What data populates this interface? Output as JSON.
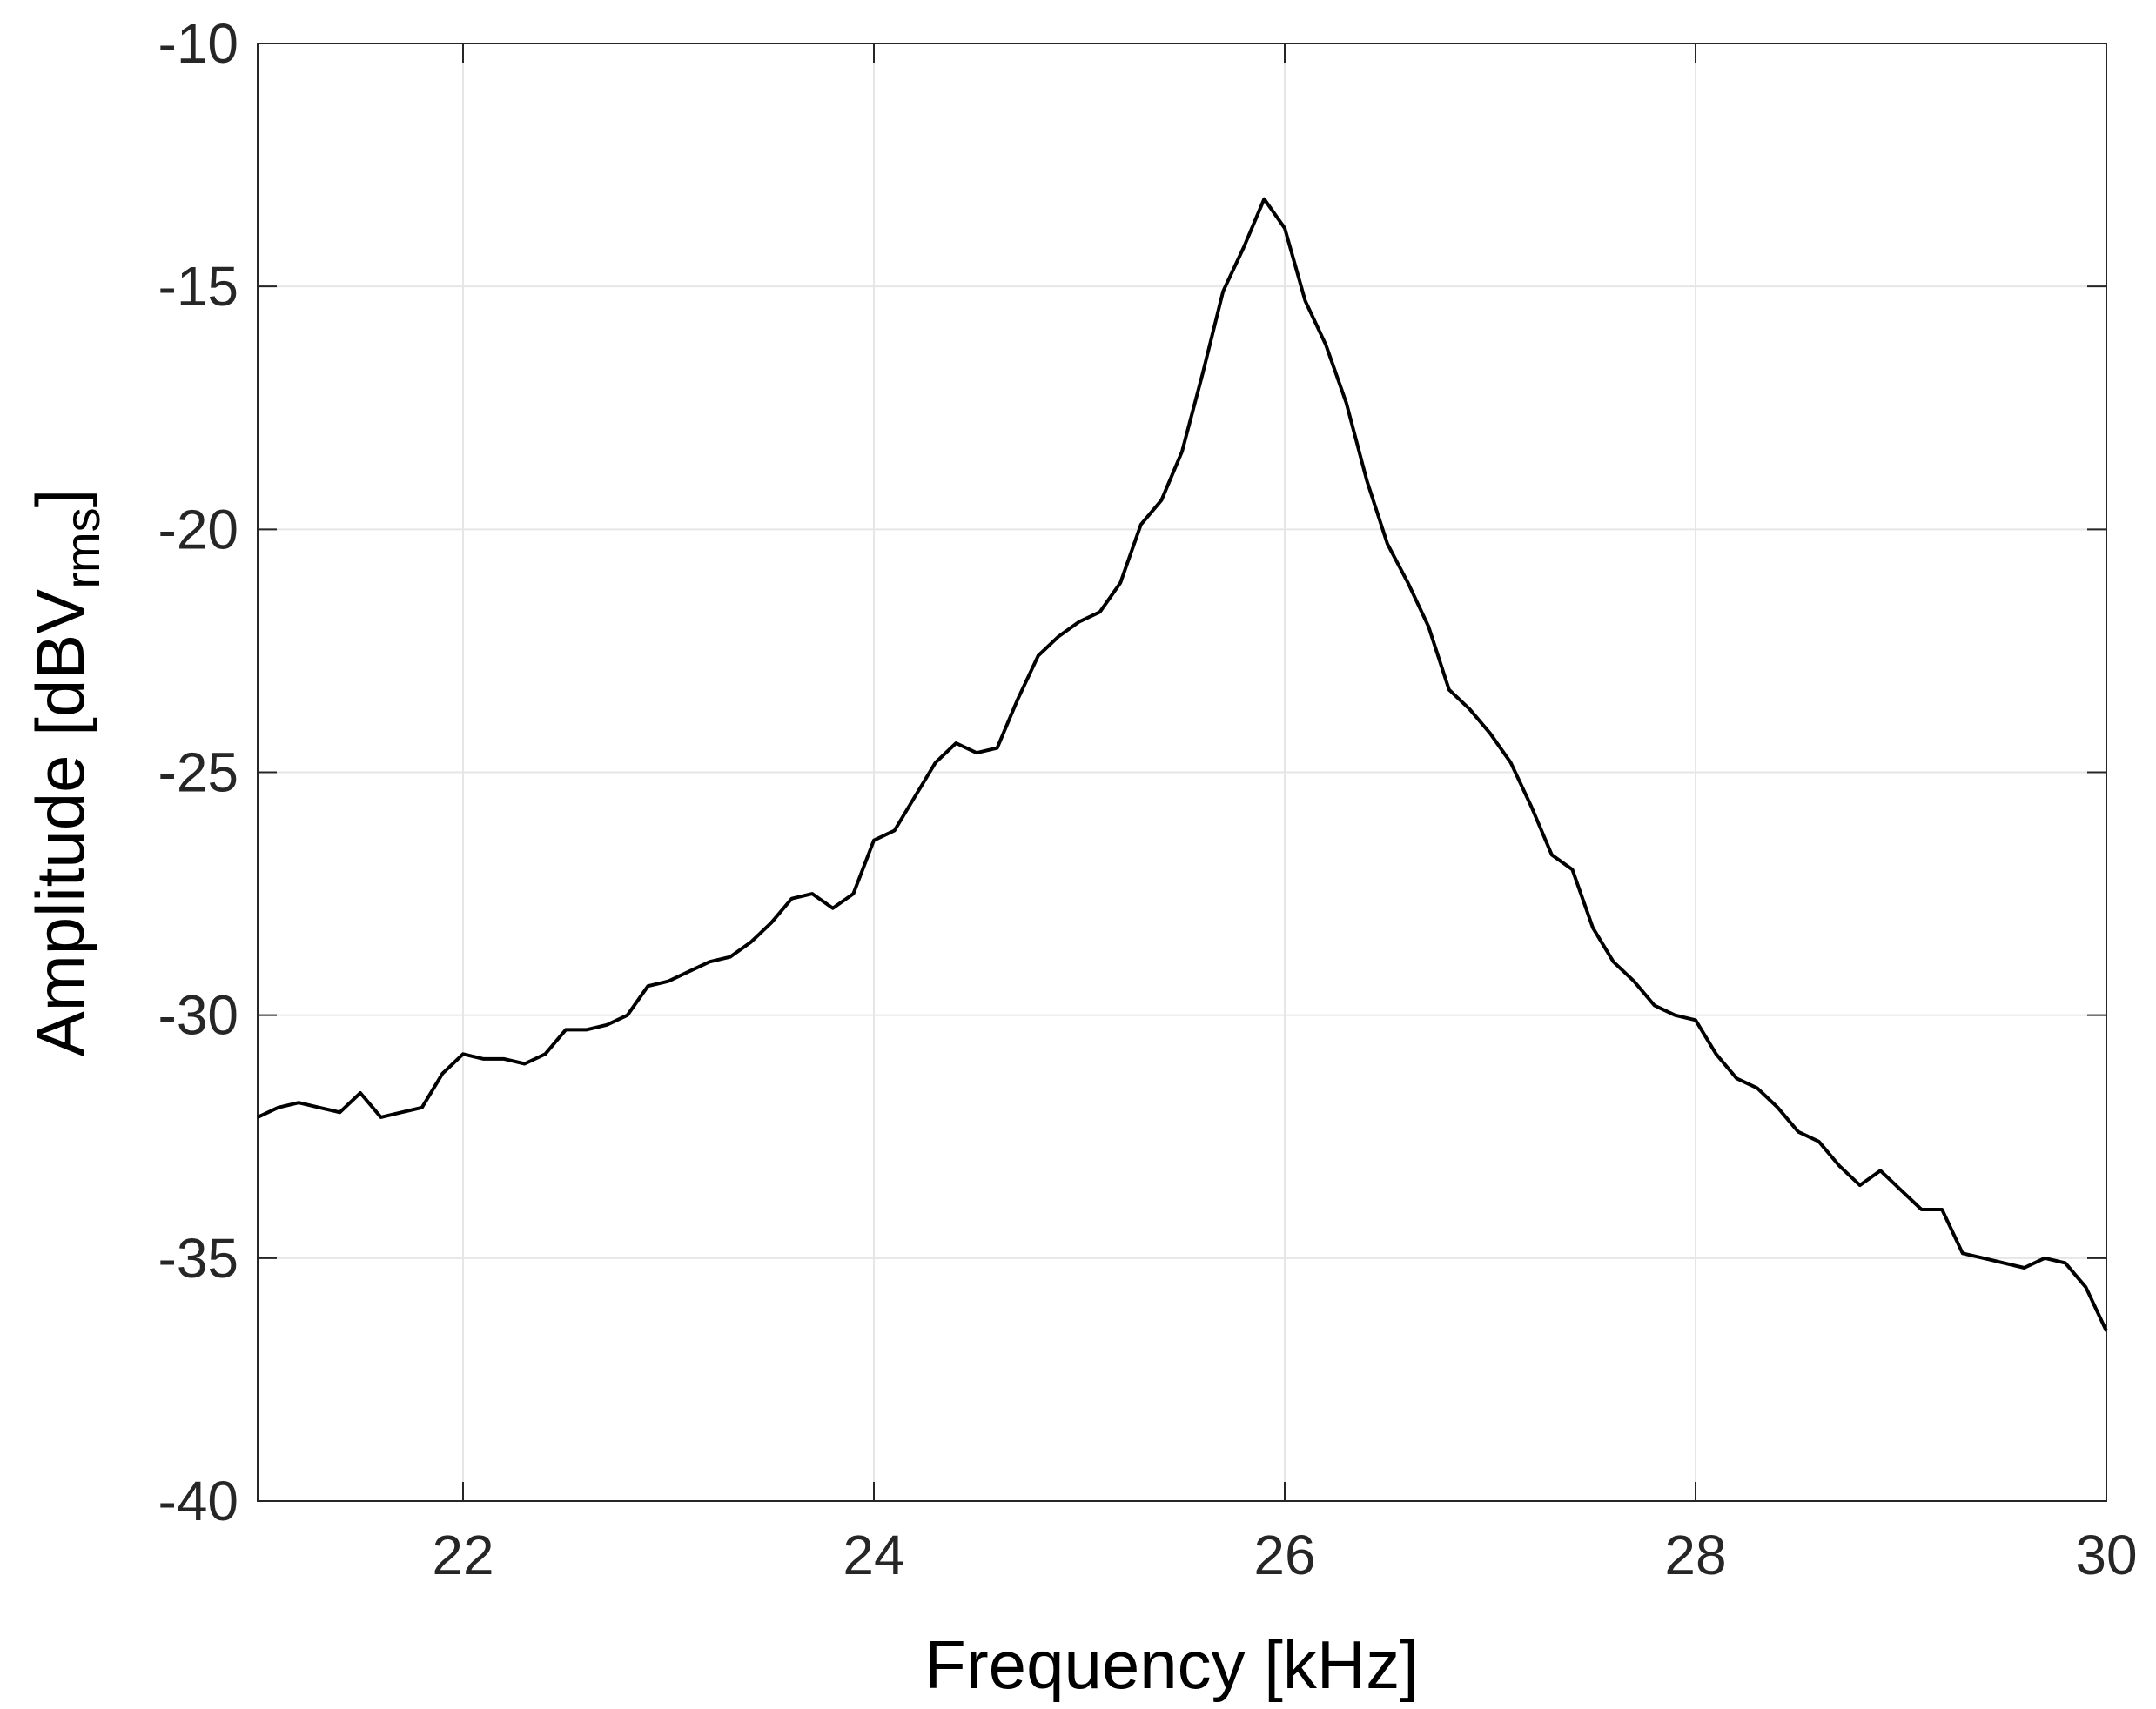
{
  "chart_data": {
    "type": "line",
    "title": "",
    "xlabel": "Frequency [kHz]",
    "ylabel": {
      "main": "Amplitude [dBV",
      "subscript": "rms",
      "close": "]"
    },
    "xlim": [
      21,
      30
    ],
    "ylim": [
      -40,
      -10
    ],
    "xticks": [
      22,
      24,
      26,
      28,
      30
    ],
    "yticks": [
      -10,
      -15,
      -20,
      -25,
      -30,
      -35,
      -40
    ],
    "grid": true,
    "legend": "none",
    "line_color": "#000000",
    "series": [
      {
        "x": [
          21.0,
          21.1,
          21.2,
          21.3,
          21.4,
          21.5,
          21.6,
          21.7,
          21.8,
          21.9,
          22.0,
          22.1,
          22.2,
          22.3,
          22.4,
          22.5,
          22.6,
          22.7,
          22.8,
          22.9,
          23.0,
          23.1,
          23.2,
          23.3,
          23.4,
          23.5,
          23.6,
          23.7,
          23.8,
          23.9,
          24.0,
          24.1,
          24.2,
          24.3,
          24.4,
          24.5,
          24.6,
          24.7,
          24.8,
          24.9,
          25.0,
          25.1,
          25.2,
          25.3,
          25.4,
          25.5,
          25.6,
          25.7,
          25.8,
          25.9,
          26.0,
          26.1,
          26.2,
          26.3,
          26.4,
          26.5,
          26.6,
          26.7,
          26.8,
          26.9,
          27.0,
          27.1,
          27.2,
          27.3,
          27.4,
          27.5,
          27.6,
          27.7,
          27.8,
          27.9,
          28.0,
          28.1,
          28.2,
          28.3,
          28.4,
          28.5,
          28.6,
          28.7,
          28.8,
          28.9,
          29.0,
          29.1,
          29.2,
          29.3,
          29.4,
          29.5,
          29.6,
          29.7,
          29.8,
          29.9,
          30.0
        ],
        "y": [
          -32.1,
          -31.9,
          -31.8,
          -31.9,
          -32.0,
          -31.6,
          -32.1,
          -32.0,
          -31.9,
          -31.2,
          -30.8,
          -30.9,
          -30.9,
          -31.0,
          -30.8,
          -30.3,
          -30.3,
          -30.2,
          -30.0,
          -29.4,
          -29.3,
          -29.1,
          -28.9,
          -28.8,
          -28.5,
          -28.1,
          -27.6,
          -27.5,
          -27.8,
          -27.5,
          -26.4,
          -26.2,
          -25.5,
          -24.8,
          -24.4,
          -24.6,
          -24.5,
          -23.5,
          -22.6,
          -22.2,
          -21.9,
          -21.7,
          -21.1,
          -19.9,
          -19.4,
          -18.4,
          -16.8,
          -15.1,
          -14.2,
          -13.2,
          -13.8,
          -15.3,
          -16.2,
          -17.4,
          -19.0,
          -20.3,
          -21.1,
          -22.0,
          -23.3,
          -23.7,
          -24.2,
          -24.8,
          -25.7,
          -26.7,
          -27.0,
          -28.2,
          -28.9,
          -29.3,
          -29.8,
          -30.0,
          -30.1,
          -30.8,
          -31.3,
          -31.5,
          -31.9,
          -32.4,
          -32.6,
          -33.1,
          -33.5,
          -33.2,
          -33.6,
          -34.0,
          -34.0,
          -34.9,
          -35.0,
          -35.1,
          -35.2,
          -35.0,
          -35.1,
          -35.6,
          -36.5
        ]
      }
    ]
  }
}
